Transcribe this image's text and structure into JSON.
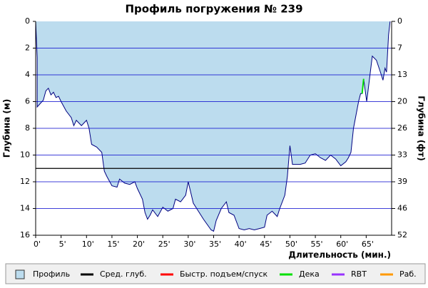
{
  "chart_data": {
    "type": "area",
    "title": "Профиль погружения № 239",
    "y_label": "Глубина (м)",
    "y2_label": "Глубина (фт)",
    "x_label": "Длительность (мин.)",
    "xlim": [
      0,
      70
    ],
    "xticks": [
      {
        "value": 0,
        "label": "0'"
      },
      {
        "value": 5,
        "label": "5'"
      },
      {
        "value": 10,
        "label": "10'"
      },
      {
        "value": 15,
        "label": "15'"
      },
      {
        "value": 20,
        "label": "20'"
      },
      {
        "value": 25,
        "label": "25'"
      },
      {
        "value": 30,
        "label": "30'"
      },
      {
        "value": 35,
        "label": "35'"
      },
      {
        "value": 40,
        "label": "40'"
      },
      {
        "value": 45,
        "label": "45'"
      },
      {
        "value": 50,
        "label": "50'"
      },
      {
        "value": 55,
        "label": "55'"
      },
      {
        "value": 60,
        "label": "60'"
      },
      {
        "value": 65,
        "label": "65'"
      }
    ],
    "ylim": [
      0,
      16
    ],
    "yticks": [
      0,
      2,
      4,
      6,
      8,
      10,
      12,
      14,
      16
    ],
    "y2lim": [
      0,
      52.49
    ],
    "y2ticks": [
      0,
      {
        "value": 6.56,
        "label": "7"
      },
      {
        "value": 13.12,
        "label": "13"
      },
      {
        "value": 19.69,
        "label": "20"
      },
      {
        "value": 26.25,
        "label": "26"
      },
      {
        "value": 32.81,
        "label": "33"
      },
      {
        "value": 39.37,
        "label": "39"
      },
      {
        "value": 45.93,
        "label": "46"
      },
      {
        "value": 52.49,
        "label": "52"
      }
    ],
    "invert_y": true,
    "grid": true,
    "grid_color": "#0000cc",
    "series": [
      {
        "name": "Профиль",
        "style": "area",
        "color": "#bcdcee",
        "line_color": "#000080",
        "x": [
          0,
          0.3,
          0.3,
          1,
          1.5,
          2,
          2.5,
          3,
          3.5,
          4,
          4.5,
          5,
          6,
          7,
          7.5,
          8,
          9,
          10,
          10.5,
          11,
          12,
          13,
          13.5,
          14,
          15,
          16,
          16.5,
          17.5,
          18.5,
          19.5,
          20,
          21,
          21.5,
          22,
          22.5,
          23,
          24,
          25,
          26,
          27,
          27.5,
          28.5,
          29.5,
          30,
          31,
          32,
          33,
          34.5,
          35,
          35.5,
          36.5,
          37.5,
          38,
          39,
          40,
          41,
          42,
          43,
          44,
          45,
          45.5,
          46.5,
          47.5,
          48,
          49,
          49.5,
          50,
          50.5,
          52,
          53,
          54,
          55,
          56,
          57,
          58,
          59,
          60,
          61,
          61.5,
          62,
          62.5,
          63,
          63.5,
          63.9,
          64.2,
          64.5,
          65.1,
          66.2,
          67,
          67.8,
          68.3,
          68.7,
          69,
          69.4,
          69.7
        ],
        "values": [
          0,
          2.7,
          6.4,
          6.1,
          5.9,
          5.2,
          5.0,
          5.5,
          5.3,
          5.7,
          5.6,
          6.0,
          6.7,
          7.2,
          7.8,
          7.4,
          7.8,
          7.4,
          8.0,
          9.2,
          9.4,
          9.8,
          11.2,
          11.6,
          12.3,
          12.4,
          11.8,
          12.1,
          12.2,
          12.0,
          12.5,
          13.3,
          14.3,
          14.8,
          14.5,
          14.1,
          14.6,
          13.9,
          14.2,
          14.0,
          13.3,
          13.5,
          13.0,
          12.0,
          13.6,
          14.2,
          14.8,
          15.6,
          15.7,
          14.9,
          14.0,
          13.5,
          14.3,
          14.5,
          15.5,
          15.6,
          15.5,
          15.6,
          15.5,
          15.4,
          14.5,
          14.2,
          14.6,
          14.0,
          13.0,
          11.6,
          9.3,
          10.7,
          10.7,
          10.6,
          10.0,
          9.9,
          10.2,
          10.4,
          10.0,
          10.3,
          10.8,
          10.5,
          10.2,
          9.8,
          8.0,
          7.0,
          6.0,
          5.4,
          5.4,
          4.3,
          6.0,
          2.6,
          2.9,
          3.8,
          4.4,
          3.5,
          3.8,
          1.0,
          0
        ]
      },
      {
        "name": "Сред. глуб.",
        "style": "hline",
        "color": "#000000",
        "values": [
          11
        ]
      },
      {
        "name": "Быстр. подъем/спуск",
        "style": "line",
        "color": "#ff0000",
        "x": [],
        "values": []
      },
      {
        "name": "Дека",
        "style": "line",
        "color": "#00e000",
        "x": [
          64.2,
          64.5
        ],
        "values": [
          5.4,
          4.3
        ]
      },
      {
        "name": "RBT",
        "style": "line",
        "color": "#9933ff",
        "x": [],
        "values": []
      },
      {
        "name": "Раб.",
        "style": "line",
        "color": "#ff9900",
        "x": [],
        "values": []
      }
    ]
  }
}
